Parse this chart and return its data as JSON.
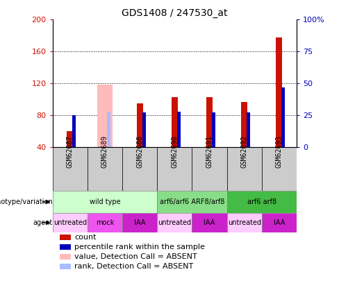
{
  "title": "GDS1408 / 247530_at",
  "samples": [
    "GSM62687",
    "GSM62689",
    "GSM62688",
    "GSM62690",
    "GSM62691",
    "GSM62692",
    "GSM62693"
  ],
  "count_values": [
    60,
    0,
    95,
    103,
    103,
    97,
    178
  ],
  "count_absent": [
    0,
    118,
    0,
    0,
    0,
    0,
    0
  ],
  "percentile_values": [
    25,
    0,
    27,
    28,
    27,
    27,
    47
  ],
  "percentile_absent": [
    0,
    27,
    0,
    0,
    0,
    0,
    0
  ],
  "is_absent": [
    false,
    true,
    false,
    false,
    false,
    false,
    false
  ],
  "ylim_left": [
    40,
    200
  ],
  "ylim_right": [
    0,
    100
  ],
  "yticks_left": [
    40,
    80,
    120,
    160,
    200
  ],
  "yticks_right": [
    0,
    25,
    50,
    75,
    100
  ],
  "ytick_labels_left": [
    "40",
    "80",
    "120",
    "160",
    "200"
  ],
  "ytick_labels_right": [
    "0",
    "25",
    "50",
    "75",
    "100%"
  ],
  "count_color": "#cc1100",
  "count_absent_color": "#ffbbbb",
  "rank_color": "#0000bb",
  "rank_absent_color": "#aabbff",
  "background_color": "#ffffff",
  "plot_bg_color": "#ffffff",
  "gray_box_color": "#cccccc",
  "genotype_groups": [
    {
      "label": "wild type",
      "start": 0,
      "end": 3,
      "color": "#ccffcc"
    },
    {
      "label": "arf6/arf6 ARF8/arf8",
      "start": 3,
      "end": 5,
      "color": "#88dd88"
    },
    {
      "label": "arf6 arf8",
      "start": 5,
      "end": 7,
      "color": "#44bb44"
    }
  ],
  "agent_groups": [
    {
      "label": "untreated",
      "start": 0,
      "end": 1,
      "color": "#ffccff"
    },
    {
      "label": "mock",
      "start": 1,
      "end": 2,
      "color": "#ee55ee"
    },
    {
      "label": "IAA",
      "start": 2,
      "end": 3,
      "color": "#cc22cc"
    },
    {
      "label": "untreated",
      "start": 3,
      "end": 4,
      "color": "#ffccff"
    },
    {
      "label": "IAA",
      "start": 4,
      "end": 5,
      "color": "#cc22cc"
    },
    {
      "label": "untreated",
      "start": 5,
      "end": 6,
      "color": "#ffccff"
    },
    {
      "label": "IAA",
      "start": 6,
      "end": 7,
      "color": "#cc22cc"
    }
  ],
  "legend_items": [
    {
      "label": "count",
      "color": "#cc1100"
    },
    {
      "label": "percentile rank within the sample",
      "color": "#0000bb"
    },
    {
      "label": "value, Detection Call = ABSENT",
      "color": "#ffbbbb"
    },
    {
      "label": "rank, Detection Call = ABSENT",
      "color": "#aabbff"
    }
  ],
  "title_fontsize": 10,
  "tick_fontsize": 8,
  "label_fontsize": 7,
  "legend_fontsize": 8
}
